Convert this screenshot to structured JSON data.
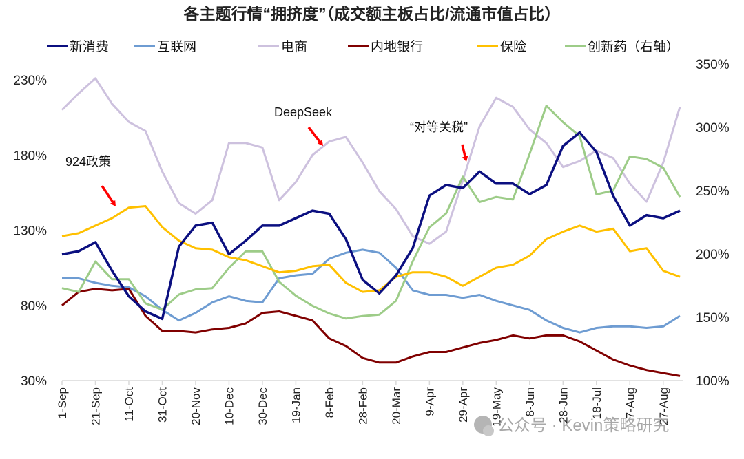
{
  "chart_data": {
    "type": "line",
    "title": "各主题行情“拥挤度”（成交额主板占比/流通市值占比）",
    "x": [
      "1-Sep",
      "11-Sep",
      "21-Sep",
      "1-Oct",
      "11-Oct",
      "21-Oct",
      "31-Oct",
      "10-Nov",
      "20-Nov",
      "30-Nov",
      "10-Dec",
      "20-Dec",
      "30-Dec",
      "9-Jan",
      "19-Jan",
      "29-Jan",
      "8-Feb",
      "18-Feb",
      "28-Feb",
      "10-Mar",
      "20-Mar",
      "30-Mar",
      "9-Apr",
      "19-Apr",
      "29-Apr",
      "9-May",
      "19-May",
      "29-May",
      "8-Jun",
      "18-Jun",
      "28-Jun",
      "8-Jul",
      "18-Jul",
      "28-Jul",
      "7-Aug",
      "17-Aug",
      "27-Aug",
      "6-Sep"
    ],
    "xticks": [
      "1-Sep",
      "21-Sep",
      "11-Oct",
      "31-Oct",
      "20-Nov",
      "10-Dec",
      "30-Dec",
      "19-Jan",
      "8-Feb",
      "28-Feb",
      "20-Mar",
      "9-Apr",
      "29-Apr",
      "19-May",
      "8-Jun",
      "28-Jun",
      "18-Jul",
      "7-Aug",
      "27-Aug"
    ],
    "y_left": {
      "range": [
        30,
        230
      ],
      "ticks": [
        "30%",
        "80%",
        "130%",
        "180%",
        "230%"
      ]
    },
    "y_right": {
      "range": [
        100,
        350
      ],
      "ticks": [
        "100%",
        "150%",
        "200%",
        "250%",
        "300%",
        "350%"
      ]
    },
    "grid": false,
    "legend": "top",
    "series": [
      {
        "name": "新消费",
        "axis": "left",
        "color": "#0b0f80",
        "values": [
          114,
          116,
          122,
          103,
          86,
          76,
          71,
          119,
          133,
          135,
          114,
          123,
          133,
          133,
          138,
          143,
          141,
          124,
          97,
          88,
          100,
          118,
          153,
          160,
          158,
          169,
          161,
          161,
          154,
          160,
          186,
          195,
          182,
          153,
          133,
          140,
          138,
          143
        ]
      },
      {
        "name": "互联网",
        "axis": "left",
        "color": "#6e9cd2",
        "values": [
          98,
          98,
          95,
          93,
          92,
          86,
          77,
          70,
          75,
          82,
          86,
          83,
          82,
          98,
          100,
          101,
          111,
          115,
          117,
          115,
          105,
          90,
          87,
          87,
          85,
          87,
          83,
          80,
          77,
          70,
          65,
          62,
          65,
          66,
          66,
          65,
          66,
          73
        ]
      },
      {
        "name": "电商",
        "axis": "left",
        "color": "#cdc1de",
        "values": [
          210,
          221,
          231,
          214,
          202,
          196,
          169,
          148,
          141,
          150,
          188,
          188,
          185,
          150,
          162,
          180,
          189,
          192,
          175,
          156,
          144,
          126,
          121,
          129,
          163,
          199,
          218,
          212,
          197,
          188,
          172,
          176,
          183,
          178,
          161,
          149,
          175,
          212
        ]
      },
      {
        "name": "内地银行",
        "axis": "left",
        "color": "#800000",
        "values": [
          80,
          89,
          91,
          90,
          91,
          73,
          63,
          63,
          62,
          64,
          65,
          68,
          75,
          76,
          73,
          70,
          58,
          53,
          45,
          42,
          42,
          46,
          49,
          49,
          52,
          55,
          57,
          60,
          58,
          60,
          60,
          56,
          50,
          44,
          40,
          37,
          35,
          33
        ]
      },
      {
        "name": "保险",
        "axis": "left",
        "color": "#ffc000",
        "values": [
          126,
          128,
          133,
          138,
          145,
          146,
          132,
          123,
          118,
          117,
          112,
          110,
          106,
          102,
          103,
          106,
          107,
          95,
          89,
          90,
          99,
          102,
          102,
          99,
          93,
          99,
          105,
          107,
          113,
          124,
          129,
          133,
          129,
          131,
          116,
          118,
          103,
          99
        ]
      },
      {
        "name": "创新药（右轴）",
        "axis": "right",
        "color": "#9dcc88",
        "values": [
          173,
          170,
          194,
          180,
          180,
          161,
          156,
          168,
          172,
          173,
          189,
          202,
          202,
          178,
          167,
          159,
          153,
          149,
          151,
          152,
          163,
          194,
          221,
          232,
          261,
          241,
          245,
          243,
          279,
          317,
          304,
          293,
          247,
          250,
          277,
          275,
          268,
          245
        ]
      }
    ],
    "annotations": [
      {
        "text": "924政策",
        "at": "21-Oct"
      },
      {
        "text": "DeepSeek",
        "at": "8-Feb"
      },
      {
        "text": "“对等关税”",
        "at": "9-Apr"
      }
    ],
    "arrow_color": "#ff0000"
  },
  "watermark": "公众号 · Kevin策略研究"
}
